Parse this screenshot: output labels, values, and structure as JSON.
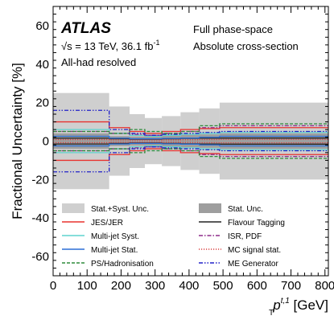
{
  "chart_data": {
    "type": "line",
    "subtype": "step",
    "ylabel": "Fractional Uncertainty [%]",
    "xlabel": "p",
    "xlabel_sub": "T",
    "xlabel_sup": "t,1",
    "xlabel_unit": "[GeV]",
    "xlim": [
      0,
      810
    ],
    "ylim": [
      -70,
      70
    ],
    "x_ticks": [
      0,
      100,
      200,
      300,
      400,
      500,
      600,
      700,
      800
    ],
    "y_ticks": [
      -60,
      -40,
      -20,
      0,
      20,
      40,
      60
    ],
    "bin_edges": [
      0,
      165,
      225,
      270,
      320,
      375,
      430,
      490,
      810
    ],
    "annotations": {
      "experiment": "ATLAS",
      "energy": "√s = 13 TeV, 36.1 fb",
      "energy_sup": "-1",
      "channel": "All-had resolved",
      "phase_space": "Full phase-space",
      "measurement": "Absolute cross-section"
    },
    "bands": [
      {
        "name": "Stat.+Syst. Unc.",
        "color": "#cfcfcf",
        "values": [
          25,
          18,
          14,
          12,
          13,
          15,
          17,
          20
        ]
      },
      {
        "name": "Stat. Unc.",
        "color": "#9e9e9e",
        "values": [
          4,
          2.6,
          2.4,
          2.4,
          2.8,
          3.2,
          3.5,
          4
        ]
      }
    ],
    "series": [
      {
        "name": "JES/JER",
        "color": "#e8322f",
        "style": "solid",
        "values": [
          -10,
          -7,
          -5,
          -4,
          -5,
          -6,
          -6.5,
          -7
        ],
        "mirror": true
      },
      {
        "name": "Flavour Tagging",
        "color": "#222222",
        "style": "solid",
        "values": [
          1.5,
          1.2,
          1.0,
          1.0,
          1.2,
          1.4,
          1.5,
          1.6
        ],
        "mirror": true
      },
      {
        "name": "Multi-jet Syst.",
        "color": "#5fd3cf",
        "style": "solid",
        "values": [
          -6,
          -4,
          -3,
          -2.5,
          -3,
          -3.5,
          -4,
          -4.5
        ],
        "mirror": true
      },
      {
        "name": "ISR, PDF",
        "color": "#8e2a8a",
        "style": "dashdot",
        "values": [
          -5,
          -4,
          -3.5,
          -3,
          -4,
          -5,
          -7,
          -8
        ],
        "mirror": true
      },
      {
        "name": "Multi-jet Stat.",
        "color": "#2b6fd6",
        "style": "solid",
        "values": [
          -2.5,
          -1.5,
          -1.2,
          -1.2,
          -1.4,
          -1.6,
          -2,
          -2.5
        ],
        "mirror": true
      },
      {
        "name": "MC signal stat.",
        "color": "#d94040",
        "style": "dotted",
        "values": [
          0.8,
          0.6,
          0.5,
          0.5,
          0.6,
          0.7,
          0.8,
          0.9
        ],
        "mirror": true
      },
      {
        "name": "PS/Hadronisation",
        "color": "#2e8b3a",
        "style": "dashed",
        "values": [
          -5,
          -4,
          -6,
          -5,
          -4,
          -5,
          -8,
          -9
        ],
        "mirror": true
      },
      {
        "name": "ME Generator",
        "color": "#2020c8",
        "style": "dashdotdot",
        "values": [
          -16,
          -6,
          -4,
          -3,
          -3.5,
          -4,
          -4.5,
          -5
        ],
        "mirror": true
      }
    ],
    "legend": [
      {
        "label": "Stat.+Syst. Unc.",
        "kind": "box",
        "color": "#cfcfcf"
      },
      {
        "label": "Stat. Unc.",
        "kind": "box",
        "color": "#9e9e9e"
      },
      {
        "label": "JES/JER",
        "kind": "line",
        "color": "#e8322f",
        "style": "solid"
      },
      {
        "label": "Flavour Tagging",
        "kind": "line",
        "color": "#222222",
        "style": "solid"
      },
      {
        "label": "Multi-jet Syst.",
        "kind": "line",
        "color": "#5fd3cf",
        "style": "solid"
      },
      {
        "label": "ISR, PDF",
        "kind": "line",
        "color": "#8e2a8a",
        "style": "dashdot"
      },
      {
        "label": "Multi-jet Stat.",
        "kind": "line",
        "color": "#2b6fd6",
        "style": "solid"
      },
      {
        "label": "MC signal stat.",
        "kind": "line",
        "color": "#d94040",
        "style": "dotted"
      },
      {
        "label": "PS/Hadronisation",
        "kind": "line",
        "color": "#2e8b3a",
        "style": "dashed"
      },
      {
        "label": "ME Generator",
        "kind": "line",
        "color": "#2020c8",
        "style": "dashdotdot"
      }
    ],
    "legend_placement": "bottom-left",
    "grid": false
  }
}
